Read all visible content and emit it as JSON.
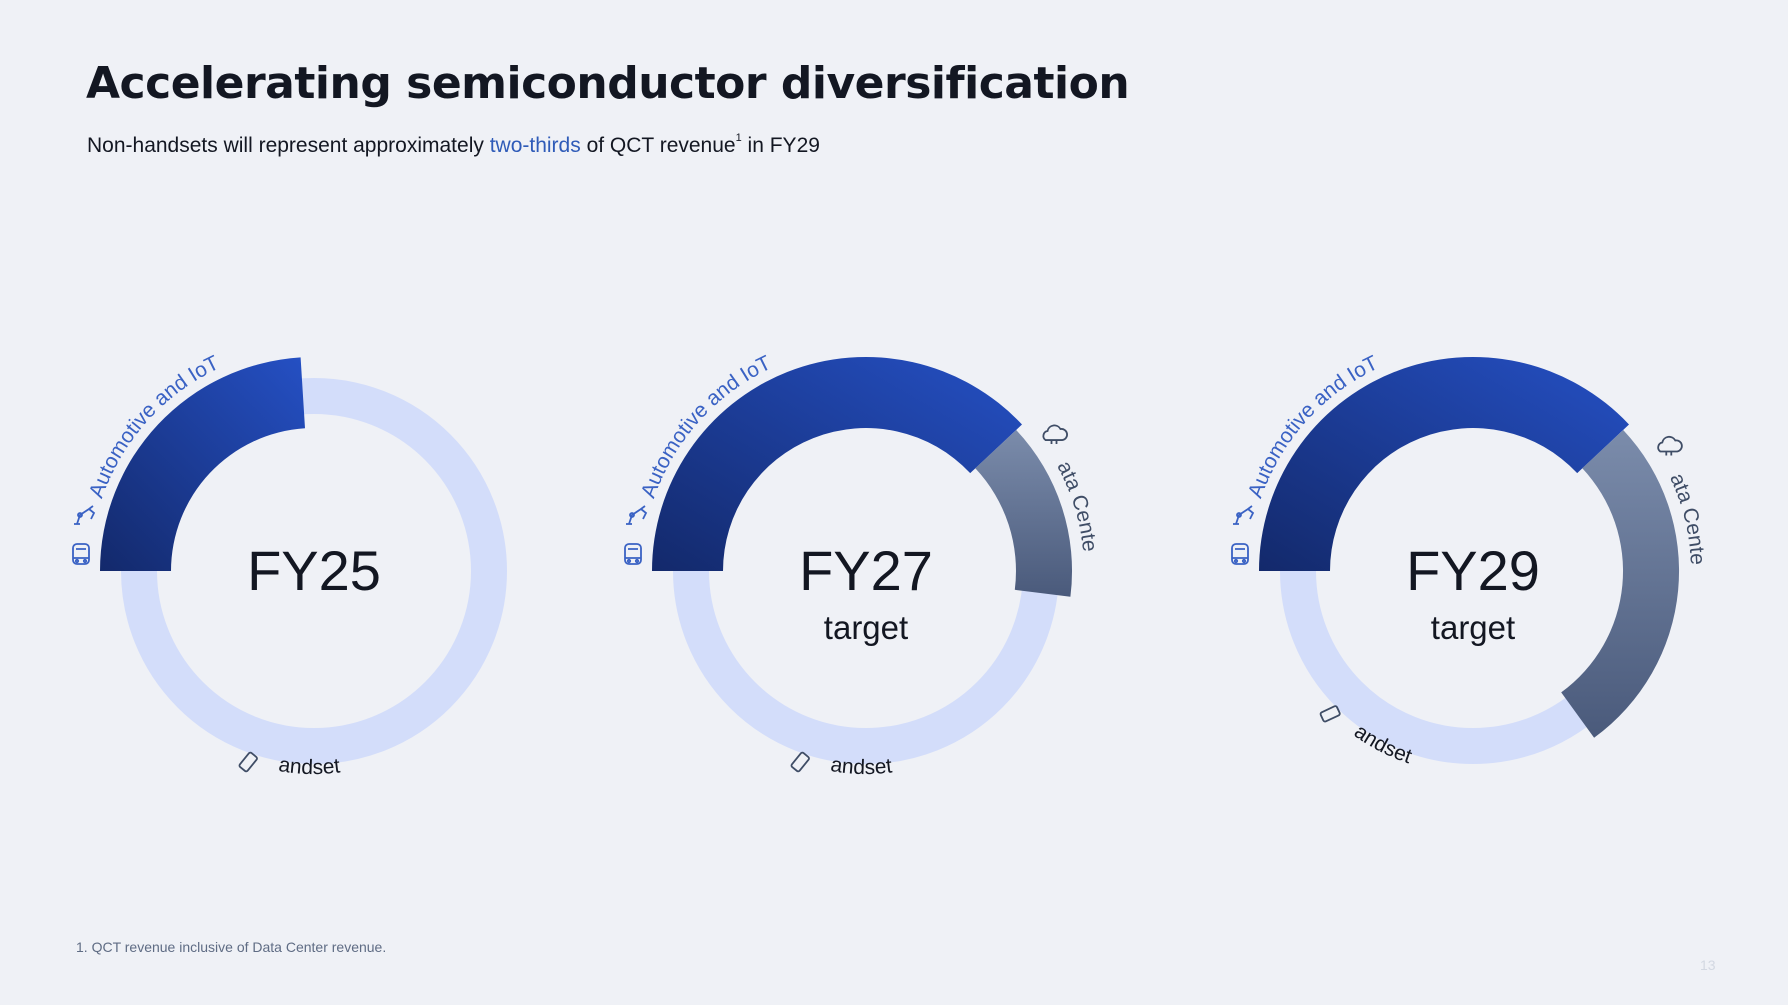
{
  "slide": {
    "title": "Accelerating semiconductor diversification",
    "subtitle": {
      "before": "Non-handsets will represent approximately ",
      "highlight": "two-thirds",
      "middle": " of QCT revenue",
      "footnote_ref": "1",
      "after": " in FY29"
    },
    "footnote": "1. QCT revenue inclusive of Data Center revenue.",
    "page_number": "13"
  },
  "colors": {
    "background": "#eff1f6",
    "handsets": "#d3ddfa",
    "automotive_iot_dark": "#13296b",
    "automotive_iot_light": "#2550c4",
    "data_center_light": "#7b8cab",
    "data_center_dark": "#4a5a7b",
    "highlight_text": "#2f5bb8",
    "label_blue": "#3a62c4",
    "label_gray": "#3f4d66"
  },
  "icons": {
    "automotive": "car-front-icon",
    "iot": "robot-arm-icon",
    "data_center": "cloud-icon",
    "handsets": "smartphone-icon"
  },
  "chart_data": [
    {
      "type": "pie",
      "variant": "donut",
      "center_label": "FY25",
      "center_sublabel": "",
      "series": [
        {
          "name": "Automotive and IoT",
          "value": 0.24
        },
        {
          "name": "Data Center",
          "value": 0
        },
        {
          "name": "Handsets",
          "value": 0.76
        }
      ]
    },
    {
      "type": "pie",
      "variant": "donut",
      "center_label": "FY27",
      "center_sublabel": "target",
      "series": [
        {
          "name": "Automotive and IoT",
          "value": 0.38
        },
        {
          "name": "Data Center",
          "value": 0.14
        },
        {
          "name": "Handsets",
          "value": 0.48
        }
      ]
    },
    {
      "type": "pie",
      "variant": "donut",
      "center_label": "FY29",
      "center_sublabel": "target",
      "series": [
        {
          "name": "Automotive and IoT",
          "value": 0.38
        },
        {
          "name": "Data Center",
          "value": 0.27
        },
        {
          "name": "Handsets",
          "value": 0.35
        }
      ]
    }
  ]
}
